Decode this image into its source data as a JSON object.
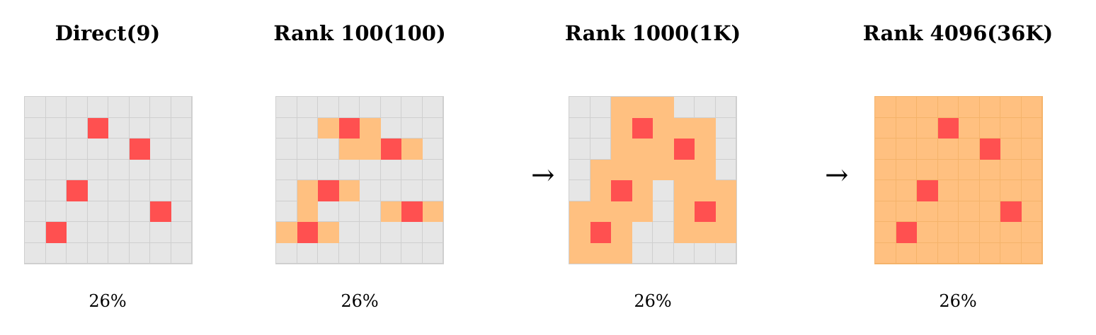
{
  "colors": {
    "empty": "#e6e6e6",
    "empty_line": "#cfcfcf",
    "fill": "#ffc080",
    "fill_line": "#f5b36a",
    "active": "#ff5050",
    "active_line": "#ff5050"
  },
  "arrow_glyph": "→",
  "panels": [
    {
      "title": "Direct(9)",
      "caption": "26%",
      "full_fill": false,
      "active": [
        [
          1,
          3
        ],
        [
          2,
          5
        ],
        [
          4,
          2
        ],
        [
          5,
          6
        ],
        [
          6,
          1
        ]
      ],
      "filled": []
    },
    {
      "title": "Rank 100(100)",
      "caption": "26%",
      "full_fill": false,
      "active": [
        [
          1,
          3
        ],
        [
          2,
          5
        ],
        [
          4,
          2
        ],
        [
          5,
          6
        ],
        [
          6,
          1
        ]
      ],
      "filled": [
        [
          1,
          2
        ],
        [
          1,
          4
        ],
        [
          2,
          3
        ],
        [
          2,
          4
        ],
        [
          2,
          6
        ],
        [
          4,
          1
        ],
        [
          4,
          3
        ],
        [
          5,
          1
        ],
        [
          5,
          5
        ],
        [
          5,
          7
        ],
        [
          6,
          0
        ],
        [
          6,
          2
        ]
      ]
    },
    {
      "title": "Rank 1000(1K)",
      "caption": "26%",
      "full_fill": false,
      "active": [
        [
          1,
          3
        ],
        [
          2,
          5
        ],
        [
          4,
          2
        ],
        [
          5,
          6
        ],
        [
          6,
          1
        ]
      ],
      "filled": [
        [
          0,
          2
        ],
        [
          0,
          3
        ],
        [
          0,
          4
        ],
        [
          1,
          2
        ],
        [
          1,
          4
        ],
        [
          1,
          5
        ],
        [
          1,
          6
        ],
        [
          2,
          2
        ],
        [
          2,
          3
        ],
        [
          2,
          4
        ],
        [
          2,
          6
        ],
        [
          3,
          1
        ],
        [
          3,
          2
        ],
        [
          3,
          3
        ],
        [
          3,
          4
        ],
        [
          3,
          5
        ],
        [
          3,
          6
        ],
        [
          4,
          1
        ],
        [
          4,
          3
        ],
        [
          4,
          5
        ],
        [
          4,
          6
        ],
        [
          4,
          7
        ],
        [
          5,
          0
        ],
        [
          5,
          1
        ],
        [
          5,
          2
        ],
        [
          5,
          3
        ],
        [
          5,
          5
        ],
        [
          5,
          7
        ],
        [
          6,
          0
        ],
        [
          6,
          2
        ],
        [
          6,
          5
        ],
        [
          6,
          6
        ],
        [
          6,
          7
        ],
        [
          7,
          0
        ],
        [
          7,
          1
        ],
        [
          7,
          2
        ]
      ]
    },
    {
      "title": "Rank 4096(36K)",
      "caption": "26%",
      "full_fill": true,
      "active": [
        [
          1,
          3
        ],
        [
          2,
          5
        ],
        [
          4,
          2
        ],
        [
          5,
          6
        ],
        [
          6,
          1
        ]
      ],
      "filled": []
    }
  ]
}
